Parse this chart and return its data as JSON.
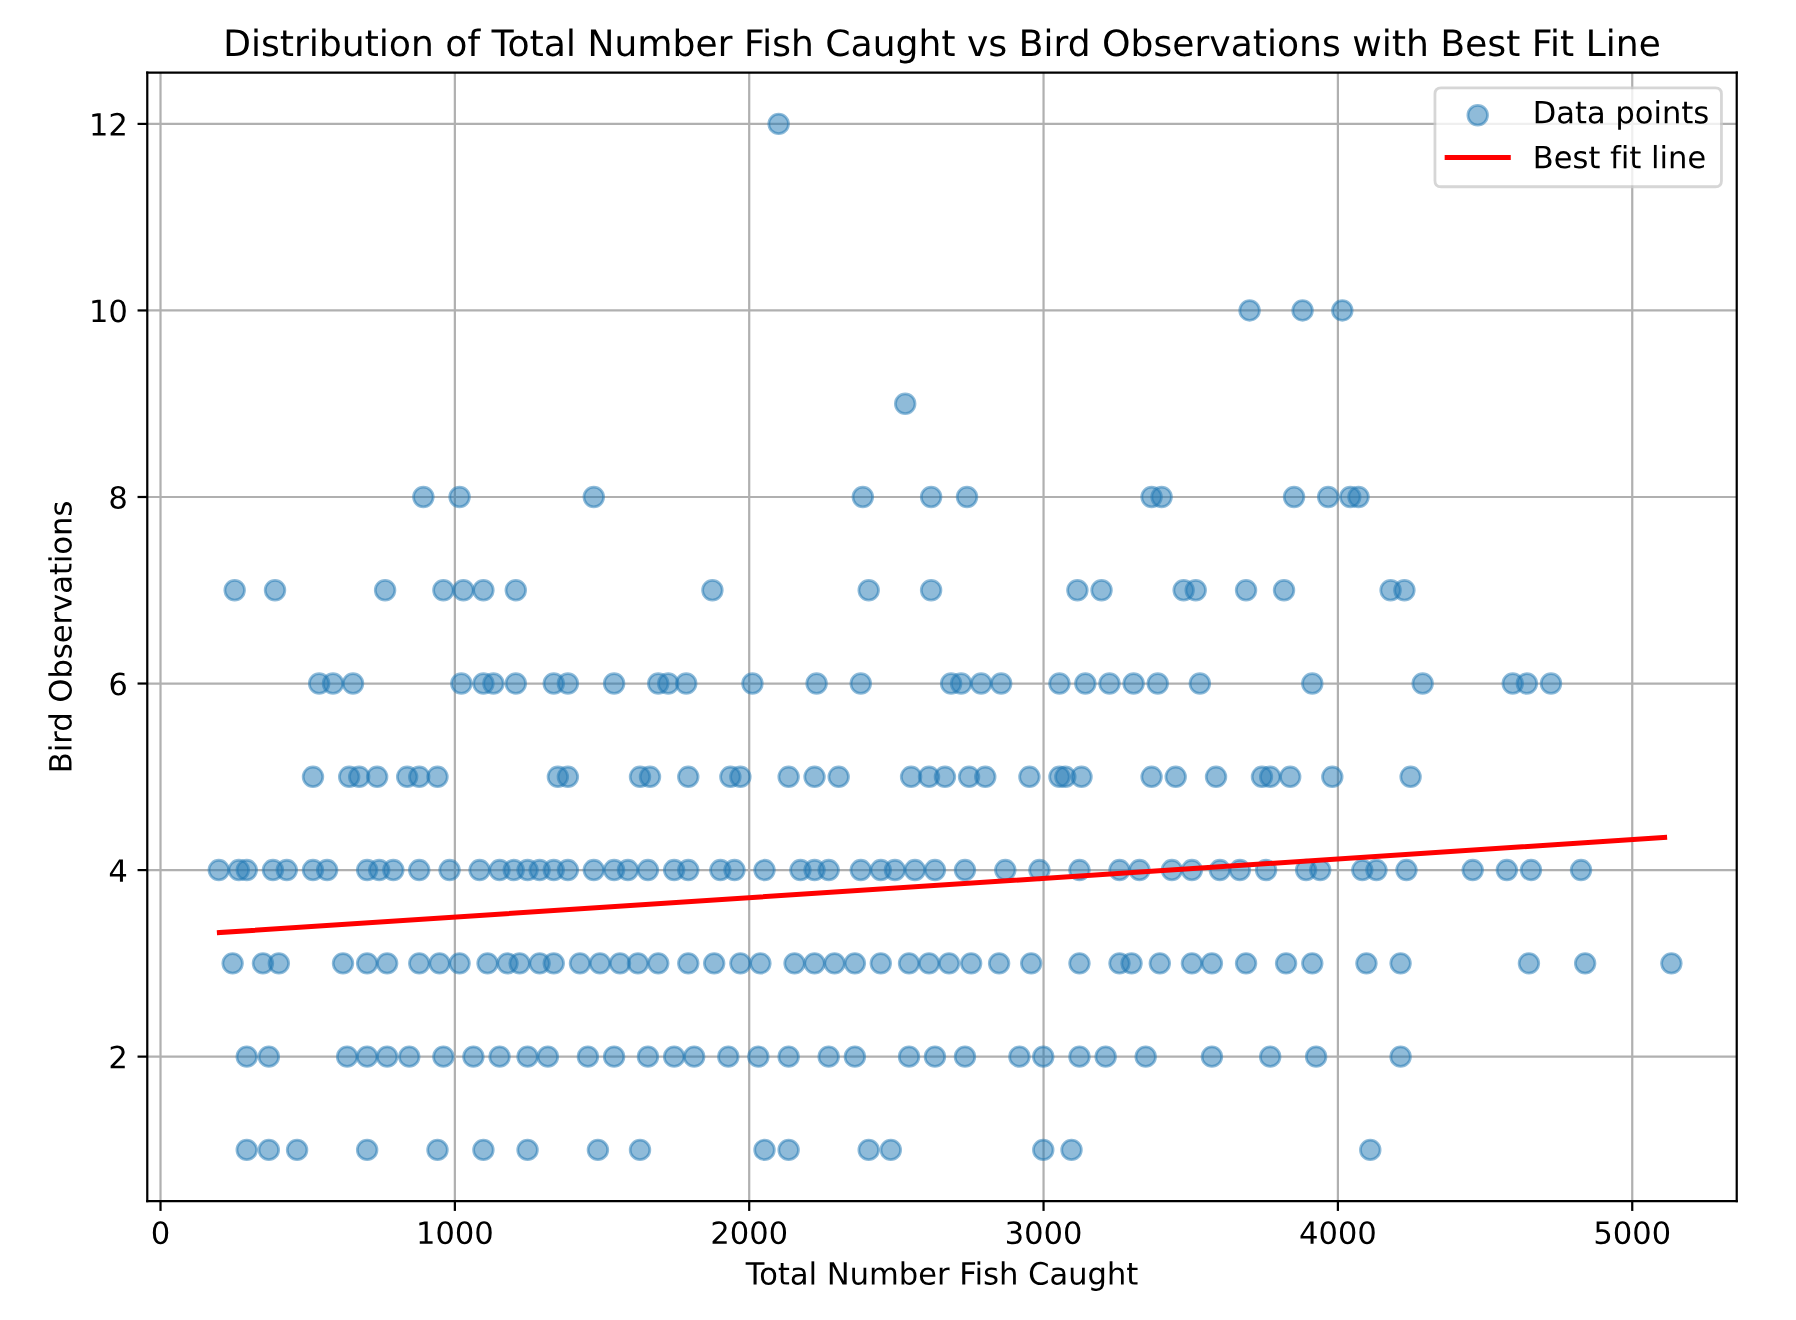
{
  "chart_data": {
    "type": "scatter",
    "title": "Distribution of Total Number Fish Caught vs Bird Observations with Best Fit Line",
    "xlabel": "Total Number Fish Caught",
    "ylabel": "Bird Observations",
    "xlim": [
      -45,
      5355
    ],
    "ylim": [
      0.45,
      12.55
    ],
    "xticks": [
      0,
      1000,
      2000,
      3000,
      4000,
      5000
    ],
    "yticks": [
      2,
      4,
      6,
      8,
      10,
      12
    ],
    "grid": true,
    "legend": "top right",
    "marker": "circle",
    "series": [
      {
        "name": "Data points",
        "color": "#1f77b4",
        "x": [
          2100,
          3700,
          3880,
          4015,
          2530,
          893,
          1016,
          1472,
          2386,
          2618,
          2740,
          3367,
          3401,
          3851,
          3967,
          4042,
          4070,
          252,
          389,
          763,
          961,
          1029,
          1097,
          1207,
          1875,
          2406,
          2618,
          3115,
          3197,
          3476,
          3517,
          3688,
          3817,
          4179,
          4226,
          539,
          586,
          654,
          1022,
          1097,
          1131,
          1207,
          1336,
          1384,
          1541,
          1691,
          1725,
          1786,
          2011,
          2229,
          2379,
          2686,
          2720,
          2788,
          2856,
          3054,
          3142,
          3224,
          3306,
          3388,
          3531,
          3913,
          4288,
          4594,
          4642,
          4724,
          518,
          641,
          675,
          736,
          838,
          879,
          941,
          1350,
          1384,
          1629,
          1663,
          1793,
          1936,
          1970,
          2134,
          2222,
          2304,
          2550,
          2611,
          2665,
          2747,
          2802,
          2952,
          3054,
          3074,
          3129,
          3367,
          3449,
          3586,
          3742,
          3770,
          3838,
          3981,
          4247,
          198,
          266,
          293,
          382,
          429,
          518,
          566,
          702,
          743,
          791,
          879,
          982,
          1084,
          1152,
          1200,
          1247,
          1288,
          1336,
          1384,
          1472,
          1541,
          1588,
          1656,
          1745,
          1793,
          1902,
          1950,
          2052,
          2174,
          2222,
          2270,
          2379,
          2447,
          2495,
          2563,
          2631,
          2733,
          2870,
          2986,
          3122,
          3258,
          3326,
          3436,
          3504,
          3599,
          3667,
          3756,
          3892,
          3940,
          4083,
          4131,
          4233,
          4458,
          4574,
          4656,
          4826,
          245,
          348,
          402,
          620,
          702,
          770,
          879,
          948,
          1016,
          1111,
          1179,
          1220,
          1288,
          1336,
          1425,
          1493,
          1561,
          1622,
          1691,
          1793,
          1881,
          1970,
          2038,
          2154,
          2222,
          2290,
          2359,
          2447,
          2543,
          2611,
          2679,
          2754,
          2849,
          2958,
          3122,
          3258,
          3299,
          3395,
          3504,
          3572,
          3688,
          3824,
          3913,
          4097,
          4213,
          4649,
          4840,
          5133,
          293,
          368,
          634,
          702,
          770,
          845,
          961,
          1063,
          1152,
          1247,
          1316,
          1452,
          1541,
          1656,
          1745,
          1813,
          1929,
          2031,
          2134,
          2270,
          2359,
          2543,
          2631,
          2733,
          2918,
          2999,
          3122,
          3211,
          3347,
          3572,
          3770,
          3926,
          4213,
          293,
          368,
          464,
          702,
          941,
          1097,
          1247,
          1486,
          1629,
          2052,
          2134,
          2406,
          2481,
          2999,
          3095,
          4110
        ],
        "values": [
          12,
          10,
          10,
          10,
          9,
          8,
          8,
          8,
          8,
          8,
          8,
          8,
          8,
          8,
          8,
          8,
          8,
          7,
          7,
          7,
          7,
          7,
          7,
          7,
          7,
          7,
          7,
          7,
          7,
          7,
          7,
          7,
          7,
          7,
          7,
          6,
          6,
          6,
          6,
          6,
          6,
          6,
          6,
          6,
          6,
          6,
          6,
          6,
          6,
          6,
          6,
          6,
          6,
          6,
          6,
          6,
          6,
          6,
          6,
          6,
          6,
          6,
          6,
          6,
          6,
          6,
          5,
          5,
          5,
          5,
          5,
          5,
          5,
          5,
          5,
          5,
          5,
          5,
          5,
          5,
          5,
          5,
          5,
          5,
          5,
          5,
          5,
          5,
          5,
          5,
          5,
          5,
          5,
          5,
          5,
          5,
          5,
          5,
          5,
          5,
          4,
          4,
          4,
          4,
          4,
          4,
          4,
          4,
          4,
          4,
          4,
          4,
          4,
          4,
          4,
          4,
          4,
          4,
          4,
          4,
          4,
          4,
          4,
          4,
          4,
          4,
          4,
          4,
          4,
          4,
          4,
          4,
          4,
          4,
          4,
          4,
          4,
          4,
          4,
          4,
          4,
          4,
          4,
          4,
          4,
          4,
          4,
          4,
          4,
          4,
          4,
          4,
          4,
          4,
          4,
          4,
          3,
          3,
          3,
          3,
          3,
          3,
          3,
          3,
          3,
          3,
          3,
          3,
          3,
          3,
          3,
          3,
          3,
          3,
          3,
          3,
          3,
          3,
          3,
          3,
          3,
          3,
          3,
          3,
          3,
          3,
          3,
          3,
          3,
          3,
          3,
          3,
          3,
          3,
          3,
          3,
          3,
          3,
          3,
          3,
          3,
          3,
          3,
          3,
          2,
          2,
          2,
          2,
          2,
          2,
          2,
          2,
          2,
          2,
          2,
          2,
          2,
          2,
          2,
          2,
          2,
          2,
          2,
          2,
          2,
          2,
          2,
          2,
          2,
          2,
          2,
          2,
          2,
          2,
          2,
          2,
          2,
          1,
          1,
          1,
          1,
          1,
          1,
          1,
          1,
          1,
          1,
          1,
          1,
          1,
          1,
          1,
          1
        ]
      },
      {
        "name": "Best fit line",
        "color": "#ff0000",
        "type": "line",
        "marker": "none",
        "line_style": "solid",
        "x": [
          200,
          5110
        ],
        "values": [
          3.33,
          4.35
        ]
      }
    ]
  }
}
